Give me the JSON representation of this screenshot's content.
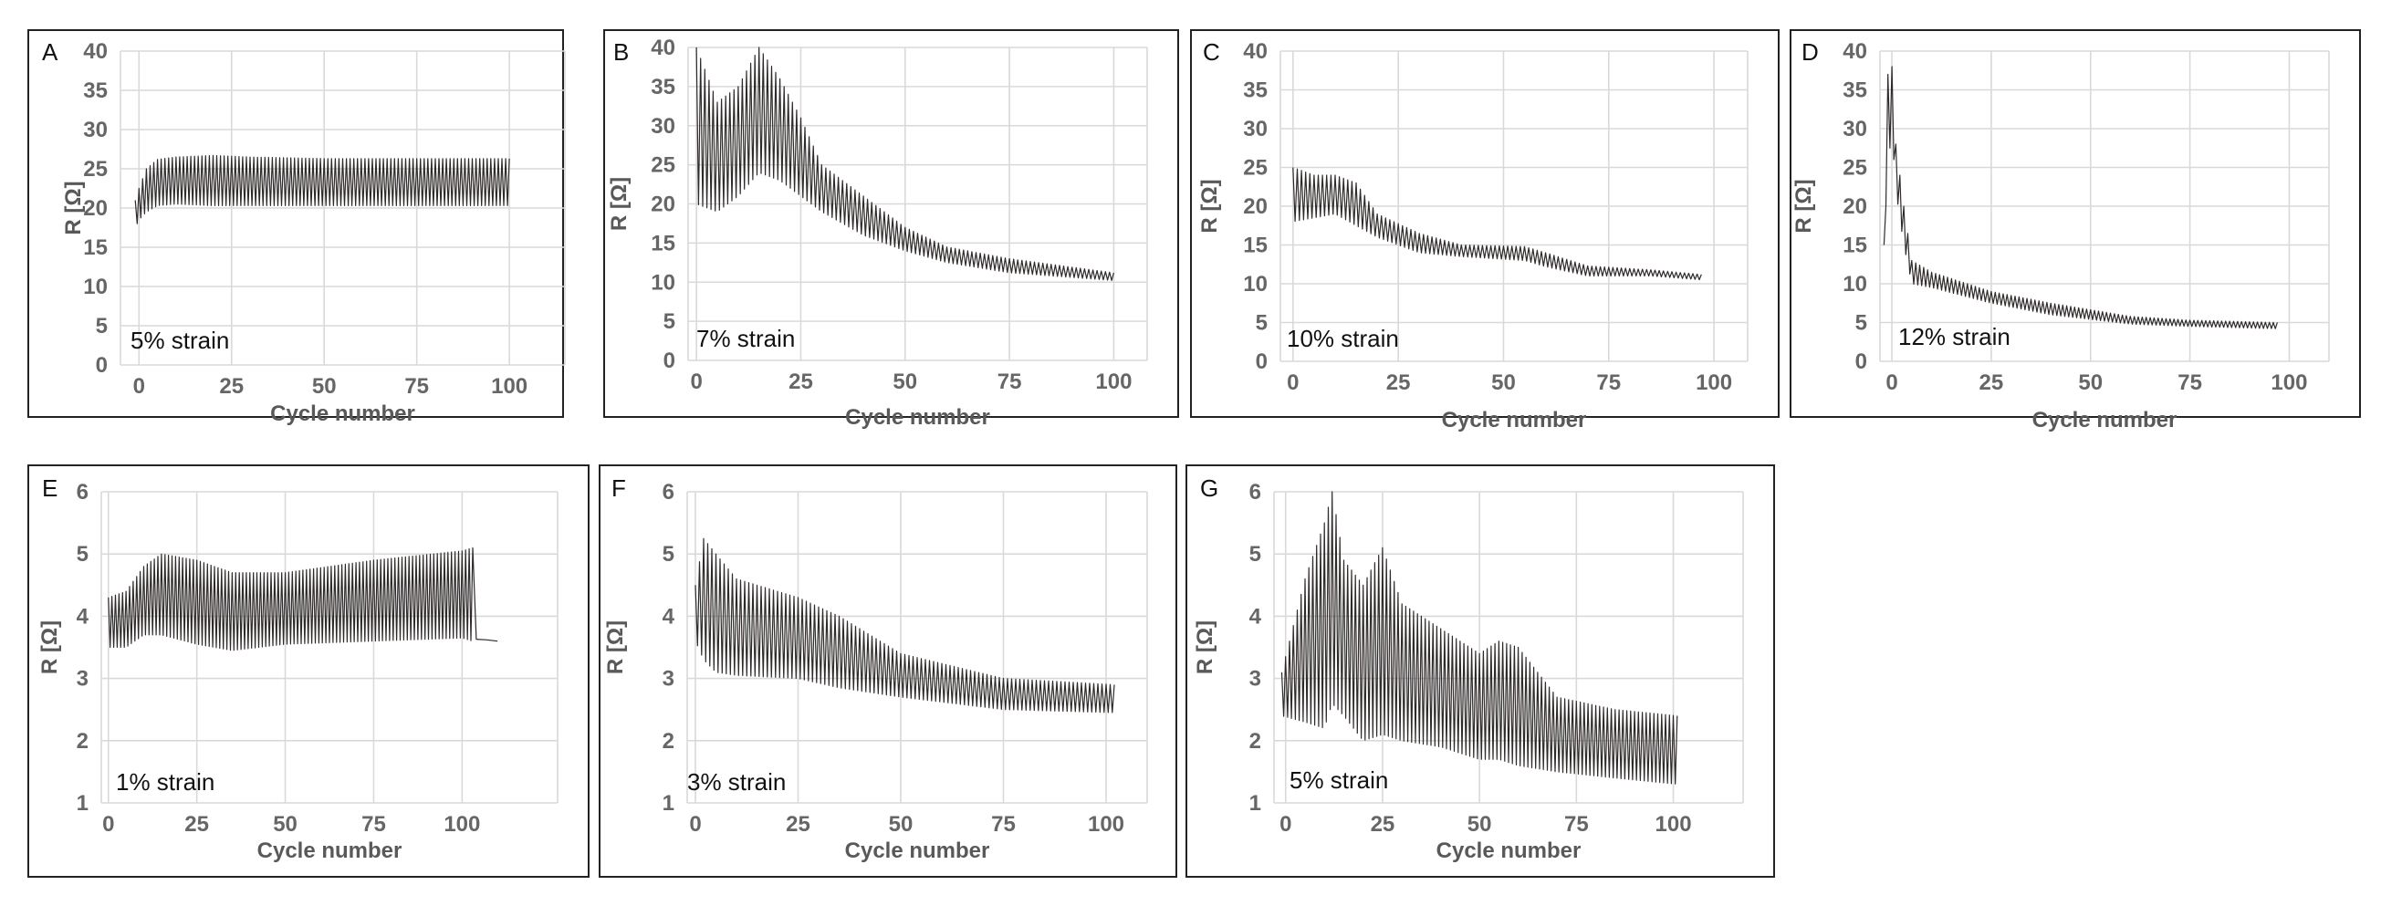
{
  "figure": {
    "title": "",
    "x_axis_label": "Cycle number",
    "y_axis_label": "R [Ω]"
  },
  "chart_data": [
    {
      "type": "line",
      "panel": "A",
      "annotation": "5% strain",
      "xlabel": "Cycle number",
      "ylabel": "R [Ω]",
      "xlim": [
        -5,
        115
      ],
      "ylim": [
        0,
        40
      ],
      "xticks": [
        0,
        25,
        50,
        75,
        100
      ],
      "yticks": [
        0,
        5,
        10,
        15,
        20,
        25,
        30,
        35,
        40
      ],
      "x_end": 100,
      "cycles": 100,
      "envelope_x": [
        -1,
        0,
        2,
        5,
        10,
        20,
        30,
        50,
        75,
        100
      ],
      "upper": [
        21,
        22.5,
        25,
        26.2,
        26.5,
        26.7,
        26.5,
        26.3,
        26.3,
        26.3
      ],
      "lower": [
        17.5,
        18.5,
        19.5,
        20.3,
        20.5,
        20.3,
        20.3,
        20.3,
        20.3,
        20.3
      ],
      "grid": true
    },
    {
      "type": "line",
      "panel": "B",
      "annotation": "7% strain",
      "xlabel": "Cycle number",
      "ylabel": "R [Ω]",
      "xlim": [
        -2,
        108
      ],
      "ylim": [
        0,
        40
      ],
      "xticks": [
        0,
        25,
        50,
        75,
        100
      ],
      "yticks": [
        0,
        5,
        10,
        15,
        20,
        25,
        30,
        35,
        40
      ],
      "x_end": 100,
      "cycles": 100,
      "envelope_x": [
        0,
        5,
        10,
        15,
        20,
        25,
        30,
        40,
        50,
        60,
        75,
        100
      ],
      "upper": [
        40,
        33,
        35,
        40,
        36,
        31,
        25,
        21,
        17,
        14.5,
        13,
        11.2
      ],
      "lower": [
        20,
        19,
        21,
        24,
        23,
        21,
        19,
        16,
        14,
        12.5,
        11.2,
        10.2
      ],
      "grid": true
    },
    {
      "type": "line",
      "panel": "C",
      "annotation": "10% strain",
      "xlabel": "Cycle number",
      "ylabel": "R [Ω]",
      "xlim": [
        -3,
        108
      ],
      "ylim": [
        0,
        40
      ],
      "xticks": [
        0,
        25,
        50,
        75,
        100
      ],
      "yticks": [
        0,
        5,
        10,
        15,
        20,
        25,
        30,
        35,
        40
      ],
      "x_end": 97,
      "cycles": 97,
      "envelope_x": [
        0,
        5,
        10,
        15,
        20,
        30,
        40,
        55,
        60,
        70,
        85,
        97
      ],
      "upper": [
        25,
        24,
        24,
        23,
        19,
        16.5,
        15,
        14.8,
        14,
        12.3,
        11.8,
        11.2
      ],
      "lower": [
        18,
        18.5,
        19,
        17.5,
        16,
        14,
        13.5,
        13,
        12.2,
        11,
        11,
        10.5
      ],
      "grid": true
    },
    {
      "type": "line",
      "panel": "D",
      "annotation": "12% strain",
      "xlabel": "Cycle number",
      "ylabel": "R [Ω]",
      "xlim": [
        -3,
        110
      ],
      "ylim": [
        0,
        40
      ],
      "xticks": [
        0,
        25,
        50,
        75,
        100
      ],
      "yticks": [
        0,
        5,
        10,
        15,
        20,
        25,
        30,
        35,
        40
      ],
      "x_end": 97,
      "cycles": 97,
      "envelope_x": [
        -2,
        -1,
        0,
        1,
        3,
        5,
        10,
        25,
        40,
        60,
        75,
        97
      ],
      "upper": [
        15,
        37,
        38,
        28,
        20,
        13,
        11.5,
        9,
        7.5,
        5.8,
        5.3,
        5.0
      ],
      "lower": [
        15,
        25,
        30,
        22,
        15,
        10,
        9.5,
        7.5,
        6,
        4.8,
        4.5,
        4.2
      ],
      "grid": true
    },
    {
      "type": "line",
      "panel": "E",
      "annotation": "1% strain",
      "xlabel": "Cycle number",
      "ylabel": "R [Ω]",
      "xlim": [
        -2,
        127
      ],
      "ylim": [
        1,
        6
      ],
      "xticks": [
        0,
        25,
        50,
        75,
        100
      ],
      "yticks": [
        1,
        2,
        3,
        4,
        5,
        6
      ],
      "x_end": 103,
      "cycles": 103,
      "envelope_x": [
        0,
        5,
        10,
        15,
        25,
        35,
        50,
        75,
        100,
        103
      ],
      "upper": [
        4.3,
        4.4,
        4.8,
        5.0,
        4.9,
        4.7,
        4.7,
        4.9,
        5.05,
        5.1
      ],
      "lower": [
        3.5,
        3.5,
        3.7,
        3.7,
        3.55,
        3.45,
        3.55,
        3.6,
        3.65,
        3.6
      ],
      "tail": [
        [
          104,
          3.63
        ],
        [
          107,
          3.62
        ],
        [
          110,
          3.6
        ]
      ],
      "grid": true
    },
    {
      "type": "line",
      "panel": "F",
      "annotation": "3% strain",
      "xlabel": "Cycle number",
      "ylabel": "R [Ω]",
      "xlim": [
        -2,
        110
      ],
      "ylim": [
        1,
        6
      ],
      "xticks": [
        0,
        25,
        50,
        75,
        100
      ],
      "yticks": [
        1,
        2,
        3,
        4,
        5,
        6
      ],
      "x_end": 102,
      "cycles": 102,
      "envelope_x": [
        0,
        2,
        5,
        10,
        25,
        35,
        50,
        75,
        102
      ],
      "upper": [
        4.5,
        5.25,
        5.0,
        4.6,
        4.3,
        4.0,
        3.4,
        3.0,
        2.9
      ],
      "lower": [
        3.6,
        3.3,
        3.1,
        3.05,
        3.0,
        2.85,
        2.7,
        2.5,
        2.45
      ],
      "grid": true
    },
    {
      "type": "line",
      "panel": "G",
      "annotation": "5% strain",
      "xlabel": "Cycle number",
      "ylabel": "R [Ω]",
      "xlim": [
        -3,
        118
      ],
      "ylim": [
        1,
        6
      ],
      "xticks": [
        0,
        25,
        50,
        75,
        100
      ],
      "yticks": [
        1,
        2,
        3,
        4,
        5,
        6
      ],
      "x_end": 101,
      "cycles": 101,
      "envelope_x": [
        -1,
        5,
        10,
        12,
        15,
        20,
        25,
        30,
        40,
        50,
        55,
        60,
        70,
        85,
        101
      ],
      "upper": [
        3.1,
        4.6,
        5.5,
        6.0,
        4.9,
        4.5,
        5.1,
        4.2,
        3.8,
        3.4,
        3.6,
        3.5,
        2.7,
        2.5,
        2.4
      ],
      "lower": [
        2.4,
        2.3,
        2.2,
        2.6,
        2.4,
        2.0,
        2.1,
        2.0,
        1.9,
        1.7,
        1.7,
        1.6,
        1.5,
        1.4,
        1.3
      ],
      "grid": true
    }
  ]
}
